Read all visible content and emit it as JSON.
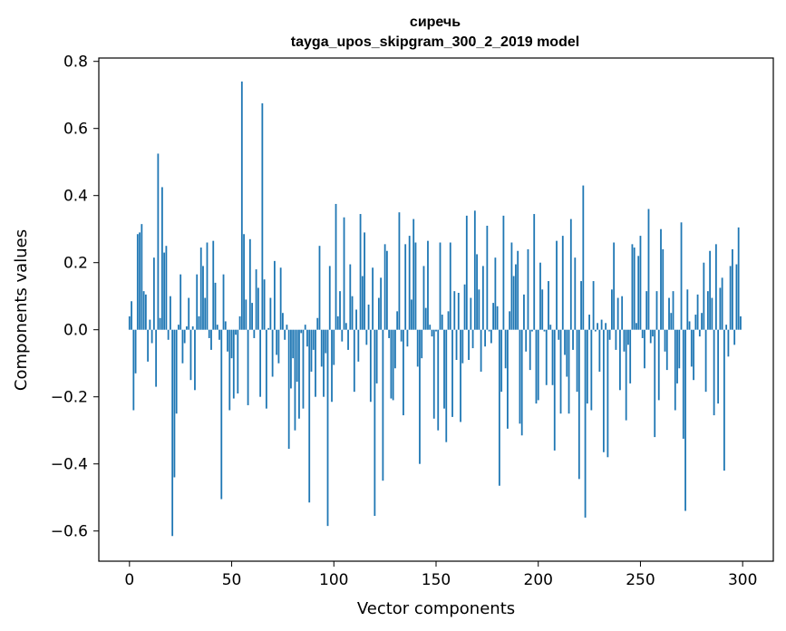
{
  "chart_data": {
    "type": "bar",
    "title": "сиречь",
    "subtitle": "tayga_upos_skipgram_300_2_2019 model",
    "xlabel": "Vector components",
    "ylabel": "Components values",
    "xlim": [
      -15,
      315
    ],
    "ylim": [
      -0.69,
      0.81
    ],
    "xticks": [
      0,
      50,
      100,
      150,
      200,
      250,
      300
    ],
    "xtick_labels": [
      "0",
      "50",
      "100",
      "150",
      "200",
      "250",
      "300"
    ],
    "yticks": [
      -0.6,
      -0.4,
      -0.2,
      0.0,
      0.2,
      0.4,
      0.6,
      0.8
    ],
    "ytick_labels": [
      "−0.6",
      "−0.4",
      "−0.2",
      "0.0",
      "0.2",
      "0.4",
      "0.6",
      "0.8"
    ],
    "bar_color": "#1f77b4",
    "grid": false,
    "values": [
      0.04,
      0.085,
      -0.24,
      -0.13,
      0.285,
      0.29,
      0.315,
      0.115,
      0.105,
      -0.095,
      0.03,
      -0.04,
      0.215,
      -0.17,
      0.525,
      0.035,
      0.425,
      0.23,
      0.25,
      -0.03,
      0.1,
      -0.615,
      -0.44,
      -0.25,
      0.015,
      0.165,
      -0.1,
      -0.04,
      0.01,
      0.095,
      -0.15,
      0.01,
      -0.18,
      0.165,
      0.04,
      0.245,
      0.19,
      0.095,
      0.26,
      -0.025,
      -0.06,
      0.265,
      0.14,
      0.015,
      -0.03,
      -0.505,
      0.165,
      0.025,
      -0.065,
      -0.24,
      -0.085,
      -0.205,
      -0.015,
      -0.19,
      0.04,
      0.74,
      0.285,
      0.09,
      -0.225,
      0.27,
      0.08,
      -0.025,
      0.18,
      0.125,
      -0.2,
      0.675,
      0.15,
      -0.235,
      0.005,
      0.095,
      -0.14,
      0.205,
      -0.075,
      -0.1,
      0.185,
      0.05,
      -0.03,
      0.015,
      -0.355,
      -0.175,
      -0.085,
      -0.3,
      -0.155,
      -0.265,
      -0.01,
      -0.235,
      0.015,
      -0.05,
      -0.515,
      -0.125,
      -0.06,
      -0.2,
      0.035,
      0.25,
      -0.11,
      -0.2,
      -0.07,
      -0.585,
      0.19,
      -0.215,
      -0.105,
      0.375,
      0.04,
      0.115,
      -0.035,
      0.335,
      0.02,
      -0.06,
      0.195,
      0.1,
      -0.185,
      0.06,
      -0.095,
      0.345,
      0.16,
      0.29,
      -0.045,
      0.075,
      -0.215,
      0.185,
      -0.555,
      -0.16,
      0.095,
      0.155,
      -0.45,
      0.255,
      0.235,
      -0.025,
      -0.205,
      -0.21,
      -0.115,
      0.055,
      0.35,
      -0.035,
      -0.255,
      0.255,
      -0.05,
      0.28,
      0.09,
      0.33,
      0.26,
      -0.11,
      -0.4,
      -0.085,
      0.19,
      0.065,
      0.265,
      0.015,
      -0.02,
      -0.265,
      -0.005,
      -0.3,
      0.26,
      0.045,
      -0.235,
      -0.335,
      0.055,
      0.26,
      -0.26,
      0.115,
      -0.09,
      0.11,
      -0.275,
      -0.1,
      0.135,
      0.34,
      -0.09,
      0.095,
      -0.055,
      0.355,
      0.225,
      0.12,
      -0.125,
      0.19,
      -0.05,
      0.31,
      -0.005,
      -0.04,
      0.08,
      0.215,
      0.07,
      -0.465,
      -0.185,
      0.34,
      -0.115,
      -0.295,
      0.055,
      0.26,
      0.16,
      0.195,
      0.235,
      -0.28,
      -0.315,
      0.105,
      -0.065,
      0.24,
      -0.12,
      -0.005,
      0.345,
      -0.22,
      -0.21,
      0.2,
      0.12,
      -0.005,
      -0.165,
      0.145,
      0.015,
      -0.165,
      -0.36,
      0.265,
      -0.03,
      -0.25,
      0.28,
      -0.075,
      -0.14,
      -0.25,
      0.33,
      -0.06,
      0.215,
      -0.185,
      -0.445,
      0.145,
      0.43,
      -0.56,
      -0.22,
      0.045,
      -0.24,
      0.145,
      -0.005,
      0.02,
      -0.125,
      0.03,
      -0.365,
      0.02,
      -0.38,
      -0.03,
      0.12,
      0.26,
      -0.06,
      0.095,
      -0.18,
      0.1,
      -0.065,
      -0.27,
      -0.045,
      -0.16,
      0.255,
      0.245,
      0.02,
      0.22,
      0.28,
      -0.025,
      -0.115,
      0.115,
      0.36,
      -0.04,
      -0.02,
      -0.32,
      0.115,
      -0.21,
      0.3,
      0.24,
      -0.065,
      -0.12,
      0.095,
      0.05,
      0.115,
      -0.24,
      -0.16,
      -0.115,
      0.32,
      -0.325,
      -0.54,
      0.12,
      0.025,
      -0.11,
      -0.15,
      0.045,
      0.105,
      -0.02,
      0.05,
      0.2,
      -0.185,
      0.115,
      0.235,
      0.095,
      -0.255,
      0.255,
      -0.22,
      0.125,
      0.155,
      -0.42,
      0.015,
      -0.08,
      0.19,
      0.24,
      -0.045,
      0.195,
      0.305,
      0.04
    ]
  }
}
